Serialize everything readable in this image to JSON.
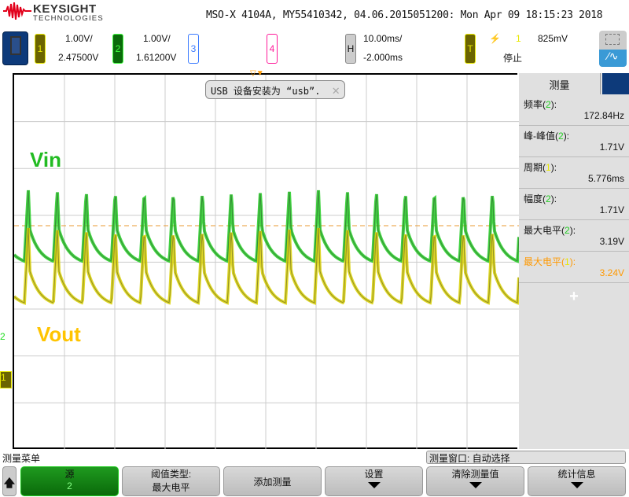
{
  "brand": {
    "name": "KEYSIGHT",
    "sub": "TECHNOLOGIES"
  },
  "header": {
    "title": "MSO-X 4104A, MY55410342, 04.06.2015051200: Mon Apr 09 18:15:23 2018"
  },
  "channels": [
    {
      "num": "1",
      "scale": "1.00V/",
      "offset": "2.47500V",
      "color": "#e8e800",
      "bg": "#6b6400"
    },
    {
      "num": "2",
      "scale": "1.00V/",
      "offset": "1.61200V",
      "color": "#40ff40",
      "bg": "#0a6a0a"
    },
    {
      "num": "3",
      "color": "#3a7aff"
    },
    {
      "num": "4",
      "color": "#ff1a9a"
    }
  ],
  "horizontal": {
    "label": "H",
    "scale": "10.00ms/",
    "delay": "-2.000ms"
  },
  "trigger": {
    "label": "T",
    "source": "1",
    "level": "825mV",
    "status": "停止"
  },
  "notification": {
    "text": "USB 设备安装为 “usb”."
  },
  "annotations": {
    "vin": "Vin",
    "vout": "Vout"
  },
  "markers": {
    "ch2": "2",
    "ch1": "1"
  },
  "measurements": {
    "title": "测量",
    "items": [
      {
        "label": "频率",
        "ch": "2",
        "value": "172.84Hz"
      },
      {
        "label": "峰-峰值",
        "ch": "2",
        "value": "1.71V"
      },
      {
        "label": "周期",
        "ch": "1",
        "value": "5.776ms"
      },
      {
        "label": "幅度",
        "ch": "2",
        "value": "1.71V"
      },
      {
        "label": "最大电平",
        "ch": "2",
        "value": "3.19V"
      },
      {
        "label": "最大电平",
        "ch": "1",
        "value": "3.24V",
        "highlight": "#ff9900"
      }
    ],
    "add": "+"
  },
  "menu": {
    "title": "测量菜单",
    "window": "测量窗口: 自动选择",
    "keys": [
      {
        "label": "源",
        "value": "2"
      },
      {
        "label": "阈值类型:",
        "value": "最大电平"
      },
      {
        "label": "添加测量"
      },
      {
        "label": "设置"
      },
      {
        "label": "清除测量值"
      },
      {
        "label": "统计信息"
      }
    ]
  }
}
